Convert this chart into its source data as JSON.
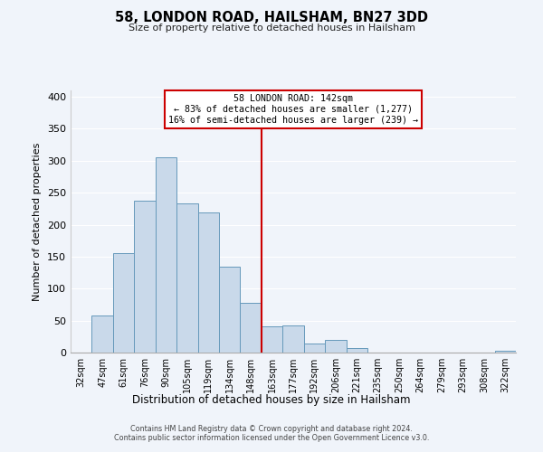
{
  "title": "58, LONDON ROAD, HAILSHAM, BN27 3DD",
  "subtitle": "Size of property relative to detached houses in Hailsham",
  "xlabel": "Distribution of detached houses by size in Hailsham",
  "ylabel": "Number of detached properties",
  "bar_labels": [
    "32sqm",
    "47sqm",
    "61sqm",
    "76sqm",
    "90sqm",
    "105sqm",
    "119sqm",
    "134sqm",
    "148sqm",
    "163sqm",
    "177sqm",
    "192sqm",
    "206sqm",
    "221sqm",
    "235sqm",
    "250sqm",
    "264sqm",
    "279sqm",
    "293sqm",
    "308sqm",
    "322sqm"
  ],
  "bar_heights": [
    0,
    58,
    155,
    238,
    305,
    233,
    219,
    135,
    78,
    41,
    42,
    14,
    20,
    7,
    0,
    0,
    0,
    0,
    0,
    0,
    3
  ],
  "bar_color": "#c9d9ea",
  "bar_edge_color": "#6699bb",
  "vline_x_index": 8,
  "vline_color": "#cc0000",
  "annotation_line1": "58 LONDON ROAD: 142sqm",
  "annotation_line2": "← 83% of detached houses are smaller (1,277)",
  "annotation_line3": "16% of semi-detached houses are larger (239) →",
  "annotation_box_color": "#ffffff",
  "annotation_box_edge": "#cc0000",
  "ylim": [
    0,
    410
  ],
  "yticks": [
    0,
    50,
    100,
    150,
    200,
    250,
    300,
    350,
    400
  ],
  "footer1": "Contains HM Land Registry data © Crown copyright and database right 2024.",
  "footer2": "Contains public sector information licensed under the Open Government Licence v3.0.",
  "background_color": "#f0f4fa",
  "grid_color": "#ffffff"
}
